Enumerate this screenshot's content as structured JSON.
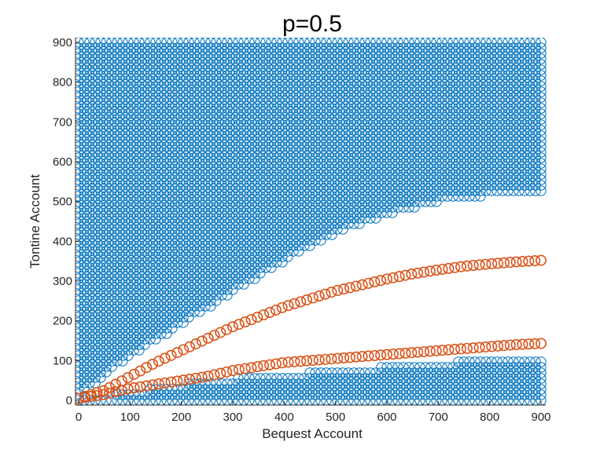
{
  "chart_data": {
    "type": "scatter",
    "title": "p=0.5",
    "xlabel": "Bequest Account",
    "ylabel": "Tontine Account",
    "xlim": [
      0,
      900
    ],
    "ylim": [
      0,
      900
    ],
    "xticks": [
      0,
      100,
      200,
      300,
      400,
      500,
      600,
      700,
      800,
      900
    ],
    "yticks": [
      0,
      100,
      200,
      300,
      400,
      500,
      600,
      700,
      800,
      900
    ],
    "grid": false,
    "marker": "circle-open",
    "colors": {
      "blue": "#0072BD",
      "orange": "#D95319"
    },
    "series": [
      {
        "color": "#0072BD",
        "region": "dense grid of points filling the area above the upper boundary curve",
        "x_range": [
          0,
          900
        ],
        "y_max": 900,
        "lower_boundary": [
          [
            0,
            10
          ],
          [
            100,
            110
          ],
          [
            200,
            190
          ],
          [
            300,
            270
          ],
          [
            400,
            350
          ],
          [
            500,
            420
          ],
          [
            600,
            465
          ],
          [
            700,
            500
          ],
          [
            800,
            515
          ],
          [
            900,
            525
          ]
        ]
      },
      {
        "color": "#0072BD",
        "region": "dense grid of points filling the band below the lower boundary curve",
        "x_range": [
          0,
          900
        ],
        "y_min": 0,
        "upper_boundary": [
          [
            0,
            0
          ],
          [
            100,
            20
          ],
          [
            200,
            40
          ],
          [
            300,
            55
          ],
          [
            400,
            65
          ],
          [
            500,
            75
          ],
          [
            600,
            85
          ],
          [
            700,
            95
          ],
          [
            800,
            100
          ],
          [
            900,
            105
          ]
        ]
      },
      {
        "color": "#D95319",
        "points": [
          [
            0,
            5
          ],
          [
            50,
            25
          ],
          [
            100,
            60
          ],
          [
            150,
            95
          ],
          [
            200,
            125
          ],
          [
            250,
            155
          ],
          [
            300,
            185
          ],
          [
            350,
            210
          ],
          [
            400,
            235
          ],
          [
            450,
            255
          ],
          [
            500,
            275
          ],
          [
            550,
            290
          ],
          [
            600,
            305
          ],
          [
            650,
            318
          ],
          [
            700,
            328
          ],
          [
            750,
            337
          ],
          [
            800,
            343
          ],
          [
            850,
            348
          ],
          [
            900,
            352
          ]
        ]
      },
      {
        "color": "#D95319",
        "points": [
          [
            0,
            5
          ],
          [
            50,
            15
          ],
          [
            100,
            30
          ],
          [
            150,
            40
          ],
          [
            200,
            50
          ],
          [
            250,
            60
          ],
          [
            300,
            75
          ],
          [
            350,
            85
          ],
          [
            400,
            95
          ],
          [
            450,
            100
          ],
          [
            500,
            105
          ],
          [
            550,
            110
          ],
          [
            600,
            115
          ],
          [
            650,
            120
          ],
          [
            700,
            125
          ],
          [
            750,
            130
          ],
          [
            800,
            135
          ],
          [
            850,
            140
          ],
          [
            900,
            143
          ]
        ]
      }
    ]
  }
}
